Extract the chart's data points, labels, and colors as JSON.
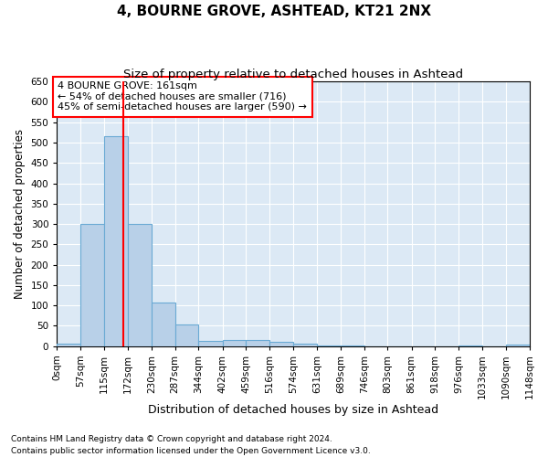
{
  "title": "4, BOURNE GROVE, ASHTEAD, KT21 2NX",
  "subtitle": "Size of property relative to detached houses in Ashtead",
  "xlabel": "Distribution of detached houses by size in Ashtead",
  "ylabel": "Number of detached properties",
  "footnote1": "Contains HM Land Registry data © Crown copyright and database right 2024.",
  "footnote2": "Contains public sector information licensed under the Open Government Licence v3.0.",
  "bin_edges": [
    0,
    57,
    115,
    172,
    230,
    287,
    344,
    402,
    459,
    516,
    574,
    631,
    689,
    746,
    803,
    861,
    918,
    976,
    1033,
    1090,
    1148
  ],
  "bar_heights": [
    5,
    300,
    515,
    300,
    108,
    53,
    13,
    16,
    16,
    10,
    5,
    2,
    1,
    0,
    0,
    0,
    0,
    1,
    0,
    4
  ],
  "bar_color": "#b8d0e8",
  "bar_edge_color": "#6aaad4",
  "background_color": "#dce9f5",
  "grid_color": "#ffffff",
  "property_line_x": 161,
  "property_line_color": "red",
  "annotation_text": "4 BOURNE GROVE: 161sqm\n← 54% of detached houses are smaller (716)\n45% of semi-detached houses are larger (590) →",
  "annotation_box_color": "white",
  "annotation_box_edge_color": "red",
  "ylim": [
    0,
    650
  ],
  "yticks": [
    0,
    50,
    100,
    150,
    200,
    250,
    300,
    350,
    400,
    450,
    500,
    550,
    600,
    650
  ],
  "title_fontsize": 11,
  "subtitle_fontsize": 9.5,
  "xlabel_fontsize": 9,
  "ylabel_fontsize": 8.5,
  "tick_label_fontsize": 7.5,
  "annotation_fontsize": 8
}
